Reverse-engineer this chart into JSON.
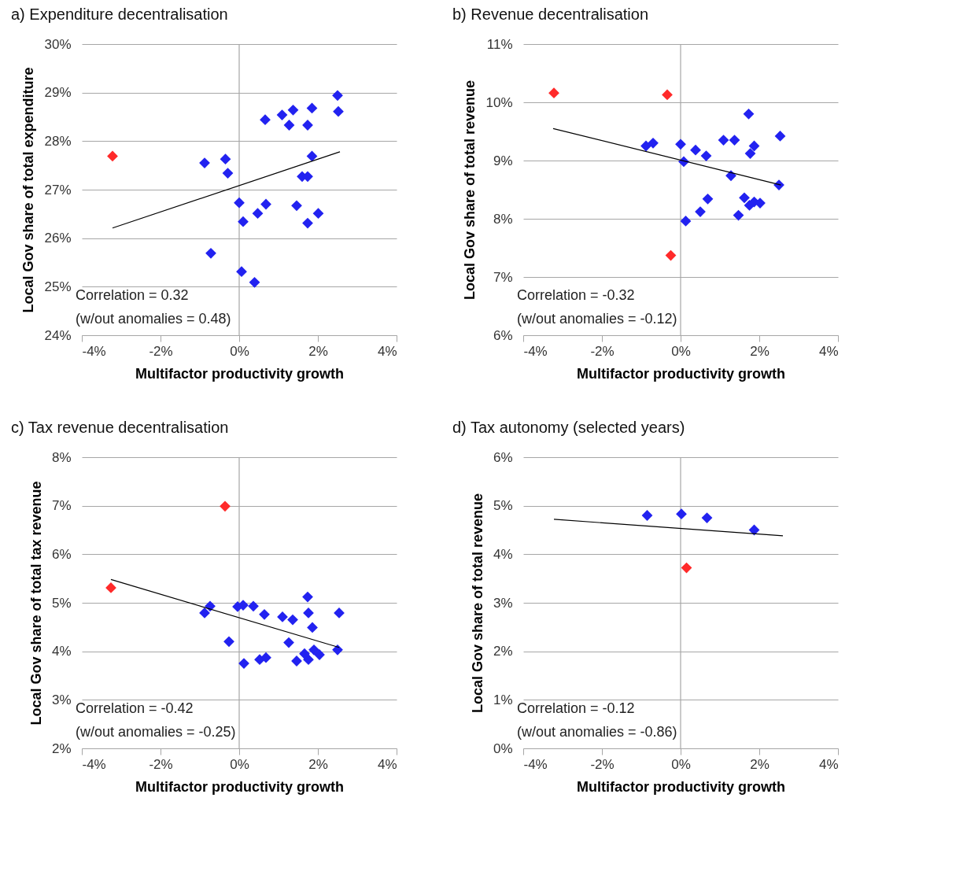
{
  "chart_data": [
    {
      "type": "scatter",
      "title": "a) Expenditure decentralisation",
      "xlabel": "Multifactor productivity growth",
      "ylabel": "Local Gov share of total expenditure",
      "marker": "diamond",
      "grid": "y",
      "xlim": [
        -4,
        4
      ],
      "xticks": [
        {
          "value": -4,
          "label": "-4%"
        },
        {
          "value": -2,
          "label": "-2%"
        },
        {
          "value": 0,
          "label": "0%"
        },
        {
          "value": 2,
          "label": "2%"
        },
        {
          "value": 4,
          "label": "4%"
        }
      ],
      "ylim": [
        24,
        30
      ],
      "yticks": [
        {
          "value": 24,
          "label": "24%"
        },
        {
          "value": 25,
          "label": "25%"
        },
        {
          "value": 26,
          "label": "26%"
        },
        {
          "value": 27,
          "label": "27%"
        },
        {
          "value": 28,
          "label": "28%"
        },
        {
          "value": 29,
          "label": "29%"
        },
        {
          "value": 30,
          "label": "30%"
        }
      ],
      "ref_lines": [
        {
          "axis": "x",
          "value": 0,
          "color": "#a6a6a6"
        }
      ],
      "annotations": [
        "Correlation = 0.32",
        "(w/out anomalies = 0.48)"
      ],
      "series": [
        {
          "color": "#2222f0",
          "x": [
            -0.88,
            -0.35,
            -0.29,
            0.66,
            1.09,
            1.37,
            1.27,
            1.85,
            1.74,
            2.5,
            2.52,
            1.85,
            1.6,
            1.74,
            0.0,
            0.1,
            0.68,
            0.47,
            1.46,
            2.01,
            1.74,
            -0.72,
            0.06,
            0.39
          ],
          "values": [
            27.55,
            27.63,
            27.34,
            28.44,
            28.54,
            28.64,
            28.33,
            28.68,
            28.33,
            28.94,
            28.61,
            27.69,
            27.27,
            27.27,
            26.73,
            26.34,
            26.7,
            26.51,
            26.67,
            26.51,
            26.31,
            25.69,
            25.31,
            25.09
          ]
        },
        {
          "color": "#ff2a2a",
          "x": [
            -3.22
          ],
          "values": [
            27.69
          ]
        },
        {
          "type": "line",
          "color": "#000000",
          "marker": "none",
          "line_style": "solid",
          "x": [
            -3.22,
            2.56
          ],
          "values": [
            26.21,
            27.78
          ]
        }
      ]
    },
    {
      "type": "scatter",
      "title": "b) Revenue decentralisation",
      "xlabel": "Multifactor productivity growth",
      "ylabel": "Local Gov share of total revenue",
      "marker": "diamond",
      "grid": "y",
      "xlim": [
        -4,
        4
      ],
      "xticks": [
        {
          "value": -4,
          "label": "-4%"
        },
        {
          "value": -2,
          "label": "-2%"
        },
        {
          "value": 0,
          "label": "0%"
        },
        {
          "value": 2,
          "label": "2%"
        },
        {
          "value": 4,
          "label": "4%"
        }
      ],
      "ylim": [
        6,
        11
      ],
      "yticks": [
        {
          "value": 6,
          "label": "6%"
        },
        {
          "value": 7,
          "label": "7%"
        },
        {
          "value": 8,
          "label": "8%"
        },
        {
          "value": 9,
          "label": "9%"
        },
        {
          "value": 10,
          "label": "10%"
        },
        {
          "value": 11,
          "label": "11%"
        }
      ],
      "ref_lines": [
        {
          "axis": "x",
          "value": 0,
          "color": "#a6a6a6"
        }
      ],
      "annotations": [
        "Correlation = -0.32",
        "(w/out anomalies = -0.12)"
      ],
      "series": [
        {
          "color": "#2222f0",
          "x": [
            1.73,
            2.53,
            -0.88,
            -0.7,
            0.0,
            0.38,
            0.65,
            0.08,
            1.09,
            1.37,
            1.87,
            1.77,
            1.28,
            2.5,
            0.69,
            0.5,
            0.13,
            1.62,
            1.75,
            1.87,
            2.02,
            1.47
          ],
          "values": [
            9.8,
            9.42,
            9.25,
            9.3,
            9.28,
            9.18,
            9.08,
            8.98,
            9.35,
            9.35,
            9.25,
            9.12,
            8.74,
            8.58,
            8.34,
            8.12,
            7.96,
            8.36,
            8.23,
            8.29,
            8.27,
            8.06
          ]
        },
        {
          "color": "#ff2a2a",
          "x": [
            -3.22,
            -0.34,
            -0.25
          ],
          "values": [
            10.16,
            10.13,
            7.37
          ]
        },
        {
          "type": "line",
          "color": "#000000",
          "marker": "none",
          "line_style": "solid",
          "x": [
            -3.24,
            2.55
          ],
          "values": [
            9.55,
            8.58
          ]
        }
      ]
    },
    {
      "type": "scatter",
      "title": "c) Tax revenue decentralisation",
      "xlabel": "Multifactor productivity growth",
      "ylabel": "Local Gov share of total tax revenue",
      "marker": "diamond",
      "grid": "y",
      "xlim": [
        -4,
        4
      ],
      "xticks": [
        {
          "value": -4,
          "label": "-4%"
        },
        {
          "value": -2,
          "label": "-2%"
        },
        {
          "value": 0,
          "label": "0%"
        },
        {
          "value": 2,
          "label": "2%"
        },
        {
          "value": 4,
          "label": "4%"
        }
      ],
      "ylim": [
        2,
        8
      ],
      "yticks": [
        {
          "value": 2,
          "label": "2%"
        },
        {
          "value": 3,
          "label": "3%"
        },
        {
          "value": 4,
          "label": "4%"
        },
        {
          "value": 5,
          "label": "5%"
        },
        {
          "value": 6,
          "label": "6%"
        },
        {
          "value": 7,
          "label": "7%"
        },
        {
          "value": 8,
          "label": "8%"
        }
      ],
      "ref_lines": [
        {
          "axis": "x",
          "value": 0,
          "color": "#a6a6a6"
        }
      ],
      "annotations": [
        "Correlation = -0.42",
        "(w/out anomalies = -0.25)"
      ],
      "series": [
        {
          "color": "#2222f0",
          "x": [
            -0.74,
            -0.88,
            -0.04,
            0.1,
            0.36,
            0.64,
            1.1,
            1.36,
            1.74,
            1.76,
            1.86,
            2.54,
            -0.26,
            1.26,
            0.12,
            0.52,
            0.68,
            1.46,
            1.66,
            1.76,
            1.9,
            2.04,
            2.5
          ],
          "values": [
            4.93,
            4.79,
            4.92,
            4.95,
            4.93,
            4.76,
            4.71,
            4.65,
            5.12,
            4.79,
            4.49,
            4.79,
            4.2,
            4.18,
            3.75,
            3.83,
            3.87,
            3.8,
            3.95,
            3.83,
            4.03,
            3.93,
            4.03
          ]
        },
        {
          "color": "#ff2a2a",
          "x": [
            -3.26,
            -0.36
          ],
          "values": [
            5.31,
            6.99
          ]
        },
        {
          "type": "line",
          "color": "#000000",
          "marker": "none",
          "line_style": "solid",
          "x": [
            -3.26,
            2.54
          ],
          "values": [
            5.48,
            4.08
          ]
        }
      ]
    },
    {
      "type": "scatter",
      "title": "d) Tax autonomy (selected years)",
      "xlabel": "Multifactor productivity growth",
      "ylabel": "Local Gov share of total revenue",
      "marker": "diamond",
      "grid": "y",
      "xlim": [
        -4,
        4
      ],
      "xticks": [
        {
          "value": -4,
          "label": "-4%"
        },
        {
          "value": -2,
          "label": "-2%"
        },
        {
          "value": 0,
          "label": "0%"
        },
        {
          "value": 2,
          "label": "2%"
        },
        {
          "value": 4,
          "label": "4%"
        }
      ],
      "ylim": [
        0,
        6
      ],
      "yticks": [
        {
          "value": 0,
          "label": "0%"
        },
        {
          "value": 1,
          "label": "1%"
        },
        {
          "value": 2,
          "label": "2%"
        },
        {
          "value": 3,
          "label": "3%"
        },
        {
          "value": 4,
          "label": "4%"
        },
        {
          "value": 5,
          "label": "5%"
        },
        {
          "value": 6,
          "label": "6%"
        }
      ],
      "ref_lines": [
        {
          "axis": "x",
          "value": 0,
          "color": "#a6a6a6"
        }
      ],
      "annotations": [
        "Correlation = -0.12",
        "(w/out anomalies = -0.86)"
      ],
      "series": [
        {
          "color": "#2222f0",
          "x": [
            -0.85,
            0.02,
            0.67,
            1.87
          ],
          "values": [
            4.8,
            4.83,
            4.75,
            4.5
          ]
        },
        {
          "color": "#ff2a2a",
          "x": [
            0.15
          ],
          "values": [
            3.72
          ]
        },
        {
          "type": "line",
          "color": "#000000",
          "marker": "none",
          "line_style": "solid",
          "x": [
            -3.22,
            2.6
          ],
          "values": [
            4.72,
            4.38
          ]
        }
      ]
    }
  ]
}
